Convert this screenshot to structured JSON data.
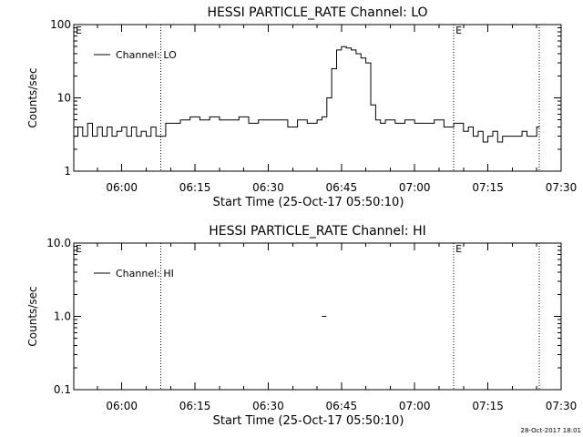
{
  "footer_timestamp": "28-Oct-2017 18:01",
  "chart_data": [
    {
      "type": "line",
      "title": "HESSI PARTICLE_RATE Channel: LO",
      "xlabel": "Start Time (25-Oct-17 05:50:10)",
      "ylabel": "Counts/sec",
      "yscale": "log",
      "xlim": [
        "05:50:10",
        "07:30:00"
      ],
      "ylim": [
        1,
        100
      ],
      "x_ticks": [
        "06:00",
        "06:15",
        "06:30",
        "06:45",
        "07:00",
        "07:15",
        "07:30"
      ],
      "y_ticks": [
        {
          "value": 1,
          "label": "1"
        },
        {
          "value": 10,
          "label": "10"
        },
        {
          "value": 100,
          "label": "100"
        }
      ],
      "vertical_markers": [
        {
          "time": "06:08:00",
          "label": ""
        },
        {
          "time": "07:08:00",
          "label": "E"
        },
        {
          "time": "07:25:30",
          "label": ""
        }
      ],
      "corner_label": "E",
      "legend": {
        "placement": "top-left",
        "label": "Channel: LO"
      },
      "series": [
        {
          "name": "Channel: LO",
          "x": [
            "05:50:10",
            "05:51:00",
            "05:52:00",
            "05:53:00",
            "05:54:00",
            "05:55:00",
            "05:56:00",
            "05:57:00",
            "05:58:00",
            "05:59:00",
            "06:00:00",
            "06:01:00",
            "06:02:00",
            "06:03:00",
            "06:04:00",
            "06:05:00",
            "06:06:00",
            "06:07:00",
            "06:08:00",
            "06:09:00",
            "06:10:00",
            "06:12:00",
            "06:14:00",
            "06:16:00",
            "06:18:00",
            "06:20:00",
            "06:22:00",
            "06:24:00",
            "06:26:00",
            "06:28:00",
            "06:30:00",
            "06:32:00",
            "06:34:00",
            "06:36:00",
            "06:38:00",
            "06:40:00",
            "06:41:00",
            "06:42:00",
            "06:43:00",
            "06:44:00",
            "06:45:00",
            "06:46:00",
            "06:47:00",
            "06:48:00",
            "06:49:00",
            "06:50:00",
            "06:51:00",
            "06:52:00",
            "06:53:00",
            "06:54:00",
            "06:56:00",
            "06:58:00",
            "07:00:00",
            "07:02:00",
            "07:04:00",
            "07:06:00",
            "07:08:00",
            "07:10:00",
            "07:11:00",
            "07:12:00",
            "07:13:00",
            "07:14:00",
            "07:15:00",
            "07:16:00",
            "07:17:00",
            "07:18:00",
            "07:19:00",
            "07:20:00",
            "07:21:00",
            "07:22:00",
            "07:23:00",
            "07:24:00",
            "07:25:00"
          ],
          "values": [
            3,
            4,
            3,
            4.5,
            3,
            4,
            3,
            4,
            3,
            3.5,
            4,
            3,
            4,
            3,
            3.5,
            3,
            4,
            3,
            3,
            4.5,
            4.5,
            5,
            5.5,
            5,
            5.5,
            5,
            5,
            5.5,
            4.5,
            5,
            5,
            5,
            4,
            5,
            4.5,
            5,
            5.5,
            10,
            25,
            45,
            50,
            48,
            45,
            40,
            35,
            30,
            8,
            5,
            4.5,
            5,
            4.5,
            5,
            4.5,
            4.5,
            5,
            4,
            4.5,
            3.5,
            4,
            3,
            3.5,
            2.5,
            3,
            3.5,
            2.5,
            3,
            3,
            3,
            3,
            3.5,
            3,
            3,
            4
          ]
        }
      ]
    },
    {
      "type": "line",
      "title": "HESSI PARTICLE_RATE Channel: HI",
      "xlabel": "Start Time (25-Oct-17 05:50:10)",
      "ylabel": "Counts/sec",
      "yscale": "log",
      "xlim": [
        "05:50:10",
        "07:30:00"
      ],
      "ylim": [
        0.1,
        10
      ],
      "x_ticks": [
        "06:00",
        "06:15",
        "06:30",
        "06:45",
        "07:00",
        "07:15",
        "07:30"
      ],
      "y_ticks": [
        {
          "value": 0.1,
          "label": "0.1"
        },
        {
          "value": 1,
          "label": "1.0"
        },
        {
          "value": 10,
          "label": "10.0"
        }
      ],
      "vertical_markers": [
        {
          "time": "06:08:00",
          "label": ""
        },
        {
          "time": "07:08:00",
          "label": "E"
        },
        {
          "time": "07:25:30",
          "label": ""
        }
      ],
      "corner_label": "E",
      "legend": {
        "placement": "top-left",
        "label": "Channel: HI"
      },
      "series": [
        {
          "name": "Channel: HI",
          "x": [
            "06:41:00",
            "06:41:20"
          ],
          "values": [
            1.0,
            1.0
          ]
        }
      ]
    }
  ]
}
